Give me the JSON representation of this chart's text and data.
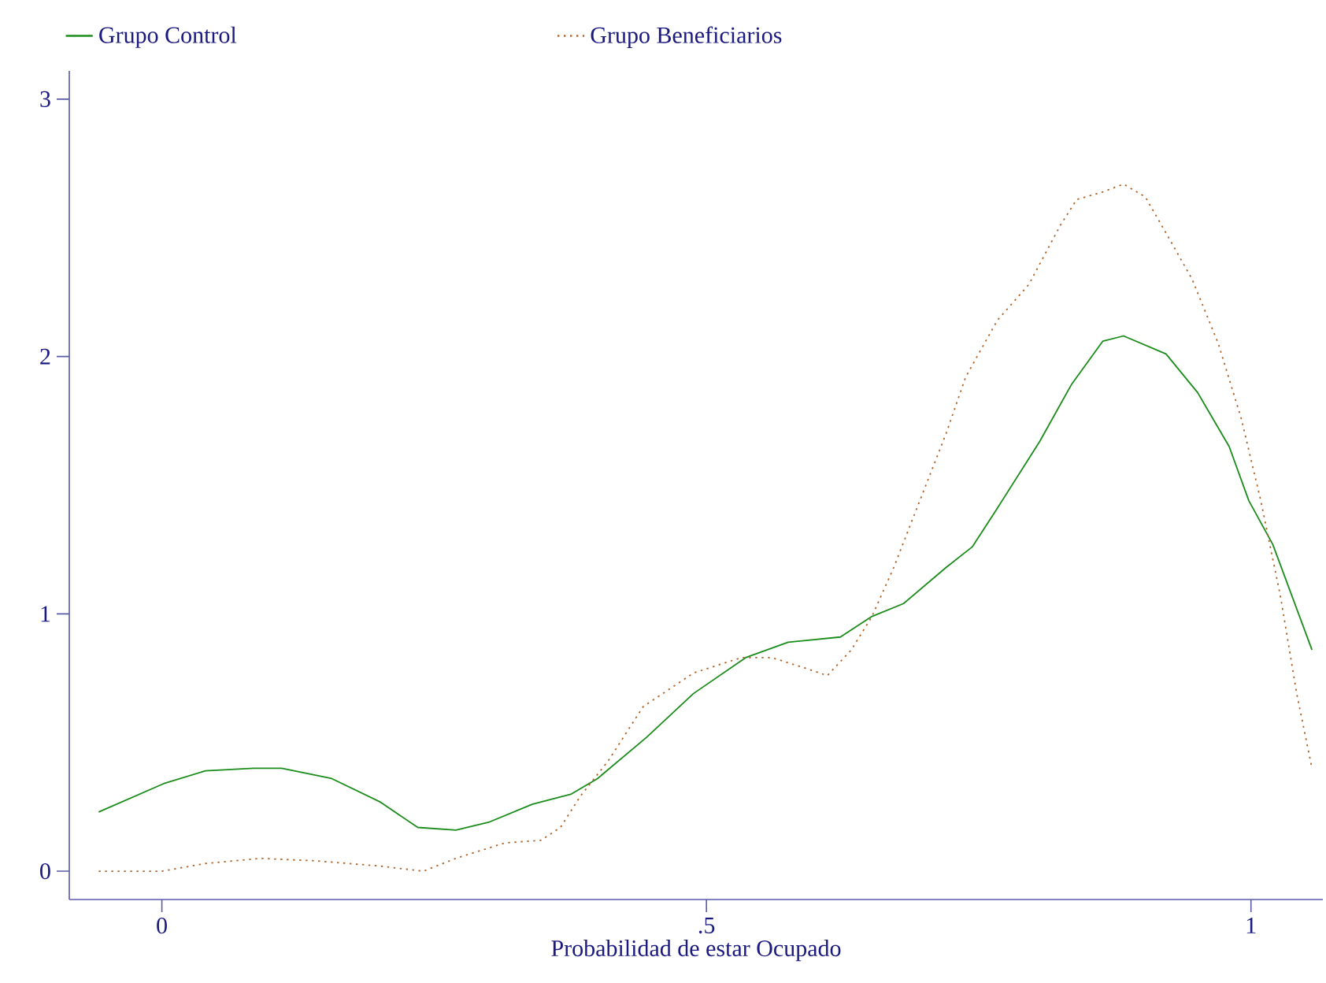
{
  "chart_data": {
    "type": "line",
    "xlabel": "Probabilidad de estar Ocupado",
    "xlim": [
      -0.085,
      1.066
    ],
    "ylim": [
      -0.11,
      3.11
    ],
    "xticks": [
      0,
      {
        "value": 0.5,
        "label": ".5"
      },
      1
    ],
    "yticks": [
      0,
      1,
      2,
      3
    ],
    "legend": "top",
    "series": [
      {
        "name": "Grupo Control",
        "color": "#1a8c1a",
        "line_style": "solid",
        "x": [
          -0.058,
          0.0015,
          0.04,
          0.084,
          0.11,
          0.156,
          0.2,
          0.235,
          0.27,
          0.3,
          0.34,
          0.376,
          0.4,
          0.445,
          0.488,
          0.536,
          0.575,
          0.623,
          0.652,
          0.681,
          0.72,
          0.744,
          0.767,
          0.806,
          0.835,
          0.864,
          0.883,
          0.922,
          0.951,
          0.98,
          0.998,
          1.02,
          1.056
        ],
        "values": [
          0.23,
          0.34,
          0.39,
          0.4,
          0.4,
          0.36,
          0.27,
          0.17,
          0.16,
          0.19,
          0.26,
          0.3,
          0.36,
          0.52,
          0.69,
          0.83,
          0.89,
          0.91,
          0.99,
          1.04,
          1.18,
          1.26,
          1.41,
          1.67,
          1.89,
          2.06,
          2.08,
          2.01,
          1.86,
          1.65,
          1.44,
          1.27,
          0.86
        ]
      },
      {
        "name": "Grupo Beneficiarios",
        "color": "#b0642a",
        "line_style": "dotted",
        "x": [
          -0.058,
          0.0,
          0.04,
          0.09,
          0.142,
          0.2,
          0.24,
          0.27,
          0.315,
          0.348,
          0.366,
          0.384,
          0.41,
          0.442,
          0.474,
          0.488,
          0.532,
          0.56,
          0.59,
          0.611,
          0.633,
          0.652,
          0.672,
          0.695,
          0.72,
          0.738,
          0.767,
          0.796,
          0.825,
          0.84,
          0.864,
          0.883,
          0.903,
          0.926,
          0.946,
          0.97,
          0.991,
          1.009,
          1.027,
          1.042,
          1.056
        ],
        "values": [
          0.0,
          0.0,
          0.03,
          0.05,
          0.04,
          0.02,
          0.0,
          0.05,
          0.11,
          0.12,
          0.17,
          0.29,
          0.43,
          0.64,
          0.73,
          0.77,
          0.83,
          0.83,
          0.79,
          0.76,
          0.86,
          0.99,
          1.18,
          1.43,
          1.7,
          1.92,
          2.14,
          2.28,
          2.51,
          2.61,
          2.64,
          2.67,
          2.62,
          2.45,
          2.3,
          2.05,
          1.76,
          1.44,
          1.07,
          0.69,
          0.4
        ]
      }
    ]
  }
}
